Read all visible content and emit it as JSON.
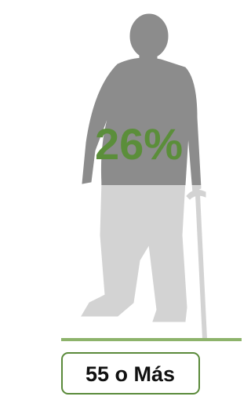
{
  "figure": {
    "value_label": "26%"
  },
  "label": "55 o Más"
}
